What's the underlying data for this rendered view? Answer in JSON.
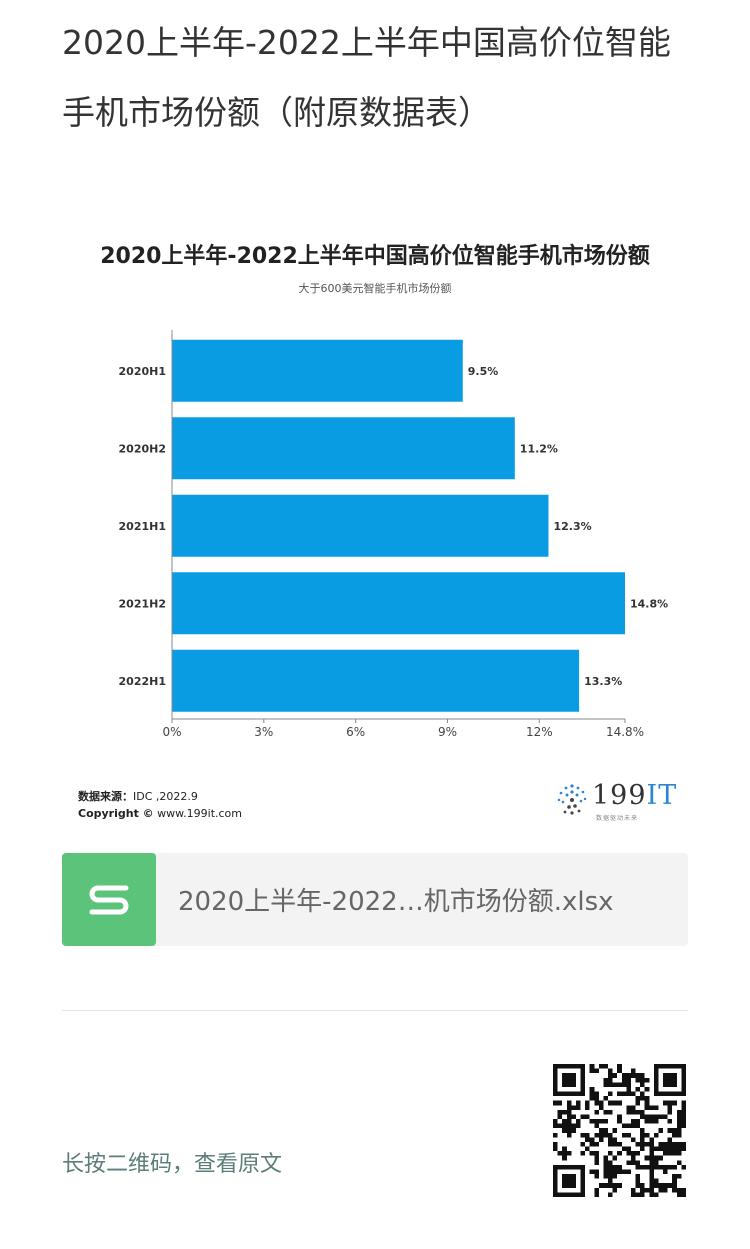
{
  "article": {
    "title": "2020上半年-2022上半年中国高价位智能手机市场份额（附原数据表）"
  },
  "chart_data": {
    "type": "bar",
    "orientation": "horizontal",
    "title": "2020上半年-2022上半年中国高价位智能手机市场份额",
    "subtitle": "大于600美元智能手机市场份额",
    "categories": [
      "2020H1",
      "2020H2",
      "2021H1",
      "2021H2",
      "2022H1"
    ],
    "values": [
      9.5,
      11.2,
      12.3,
      14.8,
      13.3
    ],
    "value_labels": [
      "9.5%",
      "11.2%",
      "12.3%",
      "14.8%",
      "13.3%"
    ],
    "xticks": [
      0,
      3,
      6,
      9,
      12,
      14.8
    ],
    "xtick_labels": [
      "0%",
      "3%",
      "6%",
      "9%",
      "12%",
      "14.8%"
    ],
    "xlim": [
      0,
      14.8
    ],
    "xlabel": "",
    "ylabel": "",
    "grid": false,
    "bar_color": "#0a9ce2",
    "source_label": "数据来源：",
    "source_value": "IDC ,2022.9",
    "copyright_label": "Copyright ©",
    "copyright_value": "www.199it.com"
  },
  "logo": {
    "brand_num": "199",
    "brand_it": "IT",
    "tagline": "数据驱动未来"
  },
  "attachment": {
    "file_name": "2020上半年-2022…机市场份额.xlsx",
    "icon": "spreadsheet-s-icon",
    "icon_color": "#5cc47a"
  },
  "footer": {
    "hint": "长按二维码，查看原文",
    "qr_icon": "qr-code-icon"
  }
}
